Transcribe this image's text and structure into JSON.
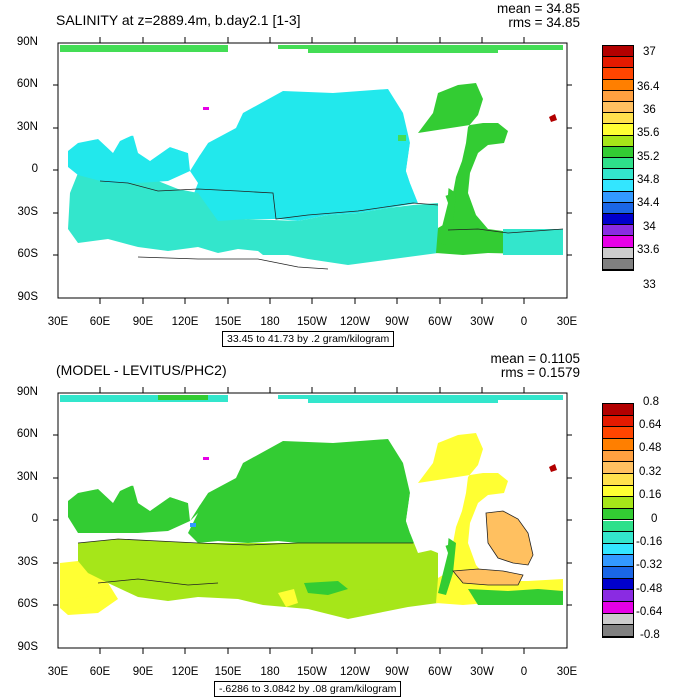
{
  "panel1": {
    "title": "SALINITY at z=2889.4m, b.day2.1 [1-3]",
    "mean": "mean = 34.85",
    "rms": "rms = 34.85",
    "range_note": "33.45 to 41.73 by .2 gram/kilogram"
  },
  "panel2": {
    "title": "(MODEL - LEVITUS/PHC2)",
    "mean": "mean = 0.1105",
    "rms": "rms = 0.1579",
    "range_note": "-.6286 to 3.0842 by .08 gram/kilogram"
  },
  "axes": {
    "lat_labels": [
      "90N",
      "60N",
      "30N",
      "0",
      "30S",
      "60S",
      "90S"
    ],
    "lon_labels": [
      "30E",
      "60E",
      "90E",
      "120E",
      "150E",
      "180",
      "150W",
      "120W",
      "90W",
      "60W",
      "30W",
      "0",
      "30E"
    ]
  },
  "colorbar1": {
    "labels": [
      "37",
      "36.4",
      "36",
      "35.6",
      "35.2",
      "34.8",
      "34.4",
      "34",
      "33.6",
      "33"
    ],
    "colors": [
      "#b20000",
      "#e41a00",
      "#ff4500",
      "#ff7f00",
      "#ffa040",
      "#ffc060",
      "#ffe14d",
      "#ffff33",
      "#a6e619",
      "#33cc33",
      "#2ee08a",
      "#33e6cc",
      "#33e6ff",
      "#3399ff",
      "#1a66e6",
      "#0000cc",
      "#8a2be2",
      "#e600e6",
      "#cccccc",
      "#808080"
    ]
  },
  "colorbar2": {
    "labels": [
      "0.8",
      "0.64",
      "0.48",
      "0.32",
      "0.16",
      "0",
      "-0.16",
      "-0.32",
      "-0.48",
      "-0.64",
      "-0.8"
    ],
    "colors": [
      "#b20000",
      "#e41a00",
      "#ff4500",
      "#ff7f00",
      "#ffa040",
      "#ffc060",
      "#ffe14d",
      "#ffff33",
      "#a6e619",
      "#33cc33",
      "#2ee08a",
      "#33e6cc",
      "#33e6ff",
      "#3399ff",
      "#1a66e6",
      "#0000cc",
      "#8a2be2",
      "#e600e6",
      "#cccccc",
      "#808080"
    ]
  },
  "colors": {
    "fill_cyan": "#22e8ec",
    "fill_teal": "#33e6cc",
    "fill_green": "#33cc33",
    "fill_ltgreen": "#44dd55",
    "fill_yellow": "#ffff33",
    "fill_orange": "#ffc060",
    "fill_red": "#b20000",
    "fill_magenta": "#e600e6",
    "fill_blue": "#3399ff"
  }
}
